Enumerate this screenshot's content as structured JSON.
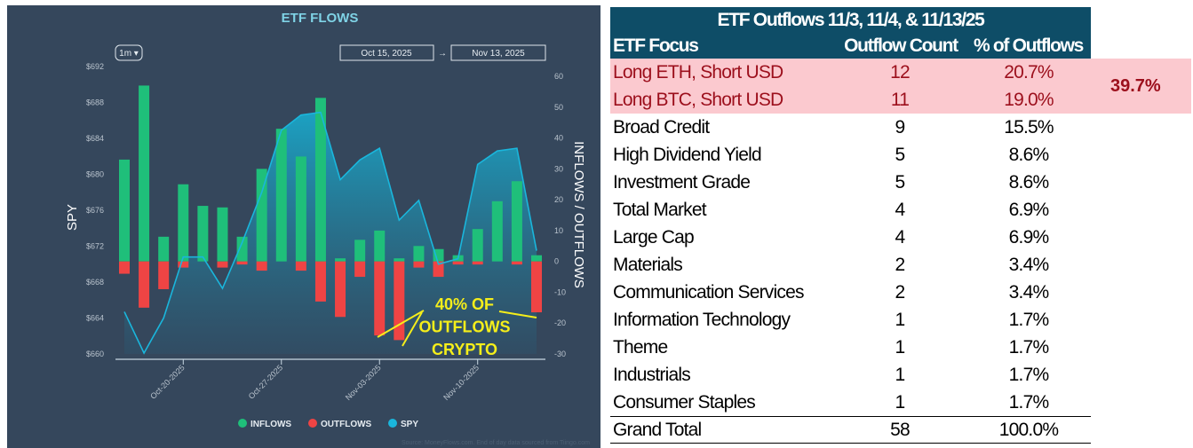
{
  "chart_data": {
    "type": "bar",
    "title": "ETF FLOWS",
    "range_selector": "1m ▾",
    "date_from": "Oct 15, 2025",
    "date_arrow": "→",
    "date_to": "Nov 13, 2025",
    "ylabel_left": "SPY",
    "ylabel_right": "INFLOWS / OUTFLOWS",
    "ylim_left": [
      660,
      692
    ],
    "ylim_right": [
      -30,
      60
    ],
    "left_ticks": [
      "$660",
      "$664",
      "$668",
      "$672",
      "$676",
      "$680",
      "$684",
      "$688",
      "$692"
    ],
    "right_ticks": [
      "-30",
      "-20",
      "-10",
      "0",
      "10",
      "20",
      "30",
      "40",
      "50",
      "60"
    ],
    "x_tick_labels": [
      "Oct-20-2025",
      "Oct-27-2025",
      "Nov-03-2025",
      "Nov-10-2025"
    ],
    "dates": [
      "2025-10-15",
      "2025-10-16",
      "2025-10-17",
      "2025-10-20",
      "2025-10-21",
      "2025-10-22",
      "2025-10-23",
      "2025-10-24",
      "2025-10-27",
      "2025-10-28",
      "2025-10-29",
      "2025-10-30",
      "2025-10-31",
      "2025-11-03",
      "2025-11-04",
      "2025-11-05",
      "2025-11-06",
      "2025-11-07",
      "2025-11-10",
      "2025-11-11",
      "2025-11-12",
      "2025-11-13"
    ],
    "series": [
      {
        "name": "INFLOWS",
        "color": "#1fbf7a",
        "values": [
          33,
          57,
          8,
          25,
          18,
          17.5,
          8,
          30,
          43,
          34,
          53,
          1,
          7,
          10,
          1,
          5,
          4,
          2,
          10.5,
          19.5,
          26,
          2
        ]
      },
      {
        "name": "OUTFLOWS",
        "color": "#ef4444",
        "values": [
          -4,
          -15,
          -9,
          -2,
          0,
          -2,
          -1,
          -3,
          0,
          -3,
          -13,
          -18,
          -5,
          -24,
          -25.5,
          -2,
          -5,
          -1,
          -1,
          0,
          -1,
          -16.5
        ]
      },
      {
        "name": "SPY",
        "color": "#1ab6dc",
        "values": [
          664.7,
          660.1,
          664,
          670.8,
          670.8,
          667.3,
          672.4,
          678,
          684.9,
          686.6,
          686.9,
          679.4,
          681.6,
          682.9,
          674.9,
          677.1,
          670,
          670.6,
          681.1,
          682.6,
          682.9,
          671.5
        ]
      }
    ],
    "annotation": [
      "40% OF",
      "OUTFLOWS",
      "CRYPTO"
    ],
    "annotation_color": "#f5ee1a",
    "legend_placement": "bottom",
    "source": "Source: MoneyFlows.com. End of day data sourced from Tiingo.com"
  },
  "table": {
    "title": "ETF Outflows 11/3, 11/4, & 11/13/25",
    "columns": [
      "ETF Focus",
      "Outflow Count",
      "% of Outflows"
    ],
    "rows": [
      [
        "Long ETH, Short USD",
        "12",
        "20.7%"
      ],
      [
        "Long BTC, Short USD",
        "11",
        "19.0%"
      ],
      [
        "Broad Credit",
        "9",
        "15.5%"
      ],
      [
        "High Dividend Yield",
        "5",
        "8.6%"
      ],
      [
        "Investment Grade",
        "5",
        "8.6%"
      ],
      [
        "Total Market",
        "4",
        "6.9%"
      ],
      [
        "Large Cap",
        "4",
        "6.9%"
      ],
      [
        "Materials",
        "2",
        "3.4%"
      ],
      [
        "Communication Services",
        "2",
        "3.4%"
      ],
      [
        "Information Technology",
        "1",
        "1.7%"
      ],
      [
        "Theme",
        "1",
        "1.7%"
      ],
      [
        "Industrials",
        "1",
        "1.7%"
      ],
      [
        "Consumer Staples",
        "1",
        "1.7%"
      ]
    ],
    "total": [
      "Grand Total",
      "58",
      "100.0%"
    ],
    "crypto_combined": "39.7%",
    "header_color": "#0e4d67",
    "highlight_color": "#fbc9cf"
  }
}
